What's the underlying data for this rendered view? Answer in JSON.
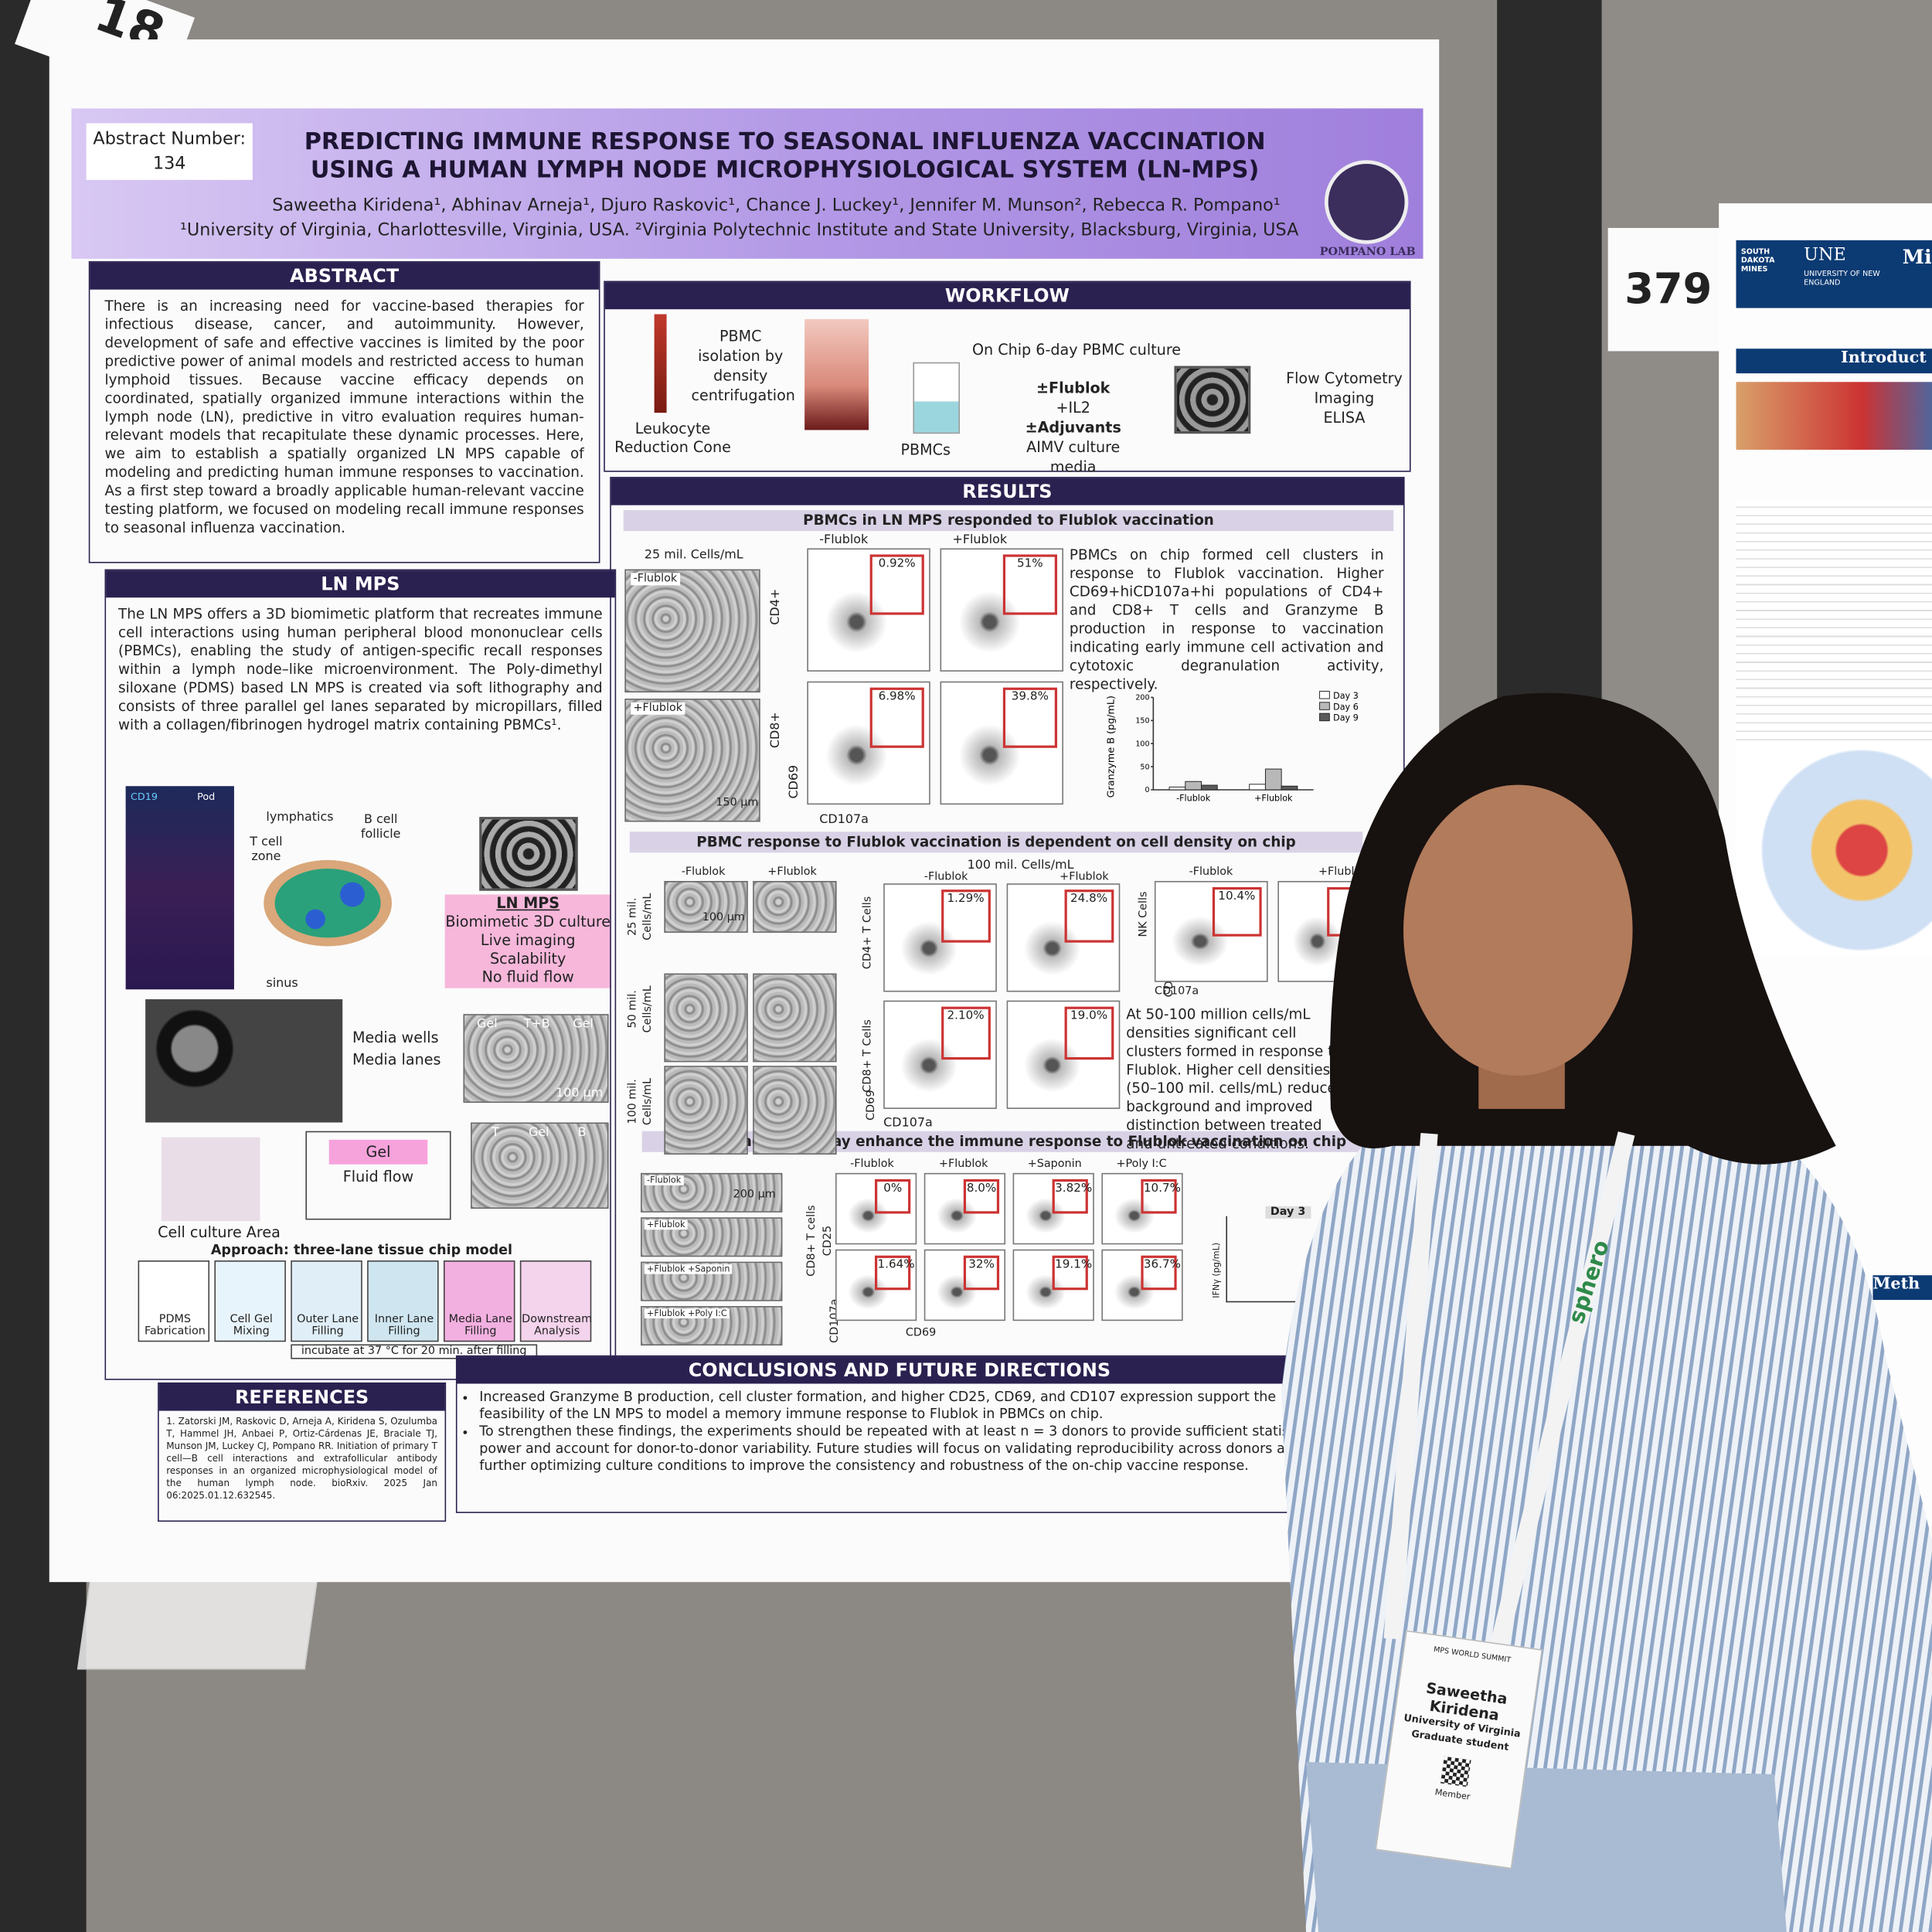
{
  "corner_tag": "18",
  "booth_number": "379",
  "poster": {
    "abstract_number_label": "Abstract Number:",
    "abstract_number": "134",
    "title_line1": "PREDICTING IMMUNE RESPONSE TO SEASONAL INFLUENZA VACCINATION",
    "title_line2": "USING A HUMAN LYMPH NODE MICROPHYSIOLOGICAL SYSTEM (LN-MPS)",
    "authors": "Saweetha Kiridena¹, Abhinav Arneja¹, Djuro Raskovic¹, Chance J. Luckey¹, Jennifer M. Munson², Rebecca R. Pompano¹",
    "affiliations": "¹University of Virginia, Charlottesville, Virginia, USA. ²Virginia Polytechnic Institute and State University, Blacksburg, Virginia, USA",
    "lab": "POMPANO LAB",
    "abstract": {
      "heading": "ABSTRACT",
      "text": "There is an increasing need for vaccine-based therapies for infectious disease, cancer, and autoimmunity. However, development of safe and effective vaccines is limited by the poor predictive power of animal models and restricted access to human lymphoid tissues. Because vaccine efficacy depends on coordinated, spatially organized immune interactions within the lymph node (LN), predictive in vitro evaluation requires human-relevant models that recapitulate these dynamic processes. Here, we aim to establish a spatially organized LN MPS capable of modeling and predicting human immune responses to vaccination. As a first step toward a broadly applicable human-relevant vaccine testing platform, we focused on modeling recall immune responses to seasonal influenza vaccination."
    },
    "ln_mps": {
      "heading": "LN MPS",
      "text": "The LN MPS offers a 3D biomimetic platform that recreates immune cell interactions using human peripheral blood mononuclear cells (PBMCs), enabling the study of antigen-specific recall responses within a lymph node–like microenvironment. The Poly-dimethyl siloxane (PDMS) based LN MPS is created via soft lithography and consists of three parallel gel lanes separated by micropillars, filled with a collagen/fibrinogen hydrogel matrix containing PBMCs¹.",
      "image_labels": [
        "CD19",
        "Pod"
      ],
      "node_labels": [
        "lymphatics",
        "B cell follicle",
        "T cell zone",
        "sinus"
      ],
      "box_title": "LN MPS",
      "box_items": [
        "Biomimetic 3D culture",
        "Live imaging",
        "Scalability",
        "No fluid flow"
      ],
      "chip_labels": [
        "Media wells",
        "Media lanes"
      ],
      "lane_labels_1": [
        "Gel",
        "T+B",
        "Gel"
      ],
      "lane_labels_2": [
        "T",
        "Gel",
        "B"
      ],
      "scale_bar": "100 µm",
      "gel": "Gel",
      "fluid_flow": "Fluid flow",
      "culture_area": "Cell culture Area",
      "approach": "Approach: three-lane tissue chip model",
      "steps": [
        "PDMS Fabrication",
        "Cell Gel Mixing",
        "Outer Lane Filling",
        "Inner Lane Filling",
        "Media Lane Filling",
        "Downstream Analysis"
      ],
      "incubate": "incubate at 37 °C for 20 min. after filling"
    },
    "workflow": {
      "heading": "WORKFLOW",
      "cone": "Leukocyte Reduction Cone",
      "isolation": "PBMC isolation by density centrifugation",
      "pbmcs": "PBMCs",
      "culture": "On Chip 6-day PBMC culture",
      "conditions": [
        "±Flublok",
        "+IL2",
        "±Adjuvants",
        "AIMV culture media"
      ],
      "readouts": [
        "Flow Cytometry",
        "Imaging",
        "ELISA"
      ]
    },
    "results": {
      "heading": "RESULTS",
      "panel1": {
        "title": "PBMCs in LN MPS responded to Flublok vaccination",
        "density": "25 mil. Cells/mL",
        "image_labels": [
          "-Flublok",
          "+Flublok"
        ],
        "scale_bar": "150 µm",
        "columns": [
          "-Flublok",
          "+Flublok"
        ],
        "rows": [
          "CD4+",
          "CD8+"
        ],
        "y_axis": "CD69",
        "x_axis": "CD107a",
        "gates": [
          "0.92%",
          "51%",
          "6.98%",
          "39.8%"
        ],
        "text": "PBMCs on chip formed cell clusters in response to Flublok vaccination. Higher CD69+hiCD107a+hi populations of CD4+ and CD8+ T cells and Granzyme B production in response to vaccination indicating early immune cell activation and cytotoxic degranulation activity, respectively.",
        "chart": {
          "y_label": "Granzyme B (pg/mL)",
          "categories": [
            "-Flublok",
            "+Flublok"
          ],
          "series": [
            {
              "name": "Day 3",
              "color": "#ffffff",
              "values": [
                6,
                12
              ]
            },
            {
              "name": "Day 6",
              "color": "#b8b8b8",
              "values": [
                18,
                45
              ]
            },
            {
              "name": "Day 9",
              "color": "#5a5a5a",
              "values": [
                10,
                8
              ]
            }
          ],
          "ylim": [
            0,
            200
          ],
          "yticks": [
            0,
            50,
            100,
            150,
            200
          ]
        }
      },
      "panel2": {
        "title": "PBMC response to Flublok vaccination is dependent on cell density on chip",
        "image_columns": [
          "-Flublok",
          "+Flublok"
        ],
        "image_rows": [
          "25 mil. Cells/mL",
          "50 mil. Cells/mL",
          "100 mil. Cells/mL"
        ],
        "scale_bar": "100 µm",
        "flow_density": "100 mil. Cells/mL",
        "columns": [
          "-Flublok",
          "+Flublok"
        ],
        "rows": [
          "CD4+ T Cells",
          "CD8+ T Cells"
        ],
        "y_axis": "CD69",
        "x_axis": "CD107a",
        "gates": [
          "1.29%",
          "24.8%",
          "2.10%",
          "19.0%"
        ],
        "nk_label": "NK Cells",
        "nk_gate": "10.4%",
        "text": "At 50-100 million cells/mL densities significant cell clusters formed in response to Flublok. Higher cell densities (50–100 mil. cells/mL) reduced background and improved distinction between treated and untreated conditions."
      },
      "panel3": {
        "title": "Poly I:C adjuvant may enhance the immune response to Flublok vaccination on chip",
        "image_rows": [
          "-Flublok",
          "+Flublok",
          "+Flublok +Saponin",
          "+Flublok +Poly I:C"
        ],
        "scale_bar": "200 µm",
        "columns": [
          "-Flublok",
          "+Flublok",
          "+Saponin",
          "+Poly I:C"
        ],
        "row_label": "CD8+ T cells",
        "y_axes": [
          "CD25",
          "CD107a"
        ],
        "x_axis": "CD69",
        "gates": [
          "0%",
          "8.0%",
          "3.82%",
          "10.7%",
          "1.64%",
          "32%",
          "19.1%",
          "36.7%"
        ],
        "chart_day": "Day 3",
        "chart_y": "IFNγ (pg/mL)"
      }
    },
    "conclusions": {
      "heading": "CONCLUSIONS AND FUTURE DIRECTIONS",
      "bullets": [
        "Increased Granzyme B production, cell cluster formation, and higher CD25, CD69, and CD107 expression support the feasibility of the LN MPS to model a memory immune response to Flublok in PBMCs on chip.",
        "To strengthen these findings, the experiments should be repeated with at least n = 3 donors to provide sufficient statistical power and account for donor-to-donor variability. Future studies will focus on validating reproducibility across donors and further optimizing culture conditions to improve the consistency and robustness of the on-chip vaccine response."
      ]
    },
    "references": {
      "heading": "REFERENCES",
      "text": "1. Zatorski JM, Raskovic D, Arneja A, Kiridena S, Ozulumba T, Hammel JH, Anbaei P, Ortiz-Cárdenas JE, Braciale TJ, Munson JM, Luckey CJ, Pompano RR. Initiation of primary T cell—B cell interactions and extrafollicular antibody responses in an organized microphysiological model of the human lymph node. bioRxiv. 2025 Jan 06:2025.01.12.632545."
    }
  },
  "side_poster": {
    "logos": [
      "SOUTH DAKOTA MINES",
      "UNE",
      "UNIVERSITY OF NEW ENGLAND"
    ],
    "title": "Micr",
    "sections": [
      "Introduct",
      "Meth"
    ]
  },
  "badge": {
    "event": "MPS WORLD SUMMIT",
    "name": "Saweetha Kiridena",
    "affiliation": "University of Virginia",
    "role": "Graduate student",
    "type": "Member",
    "lanyard": "sphero"
  }
}
